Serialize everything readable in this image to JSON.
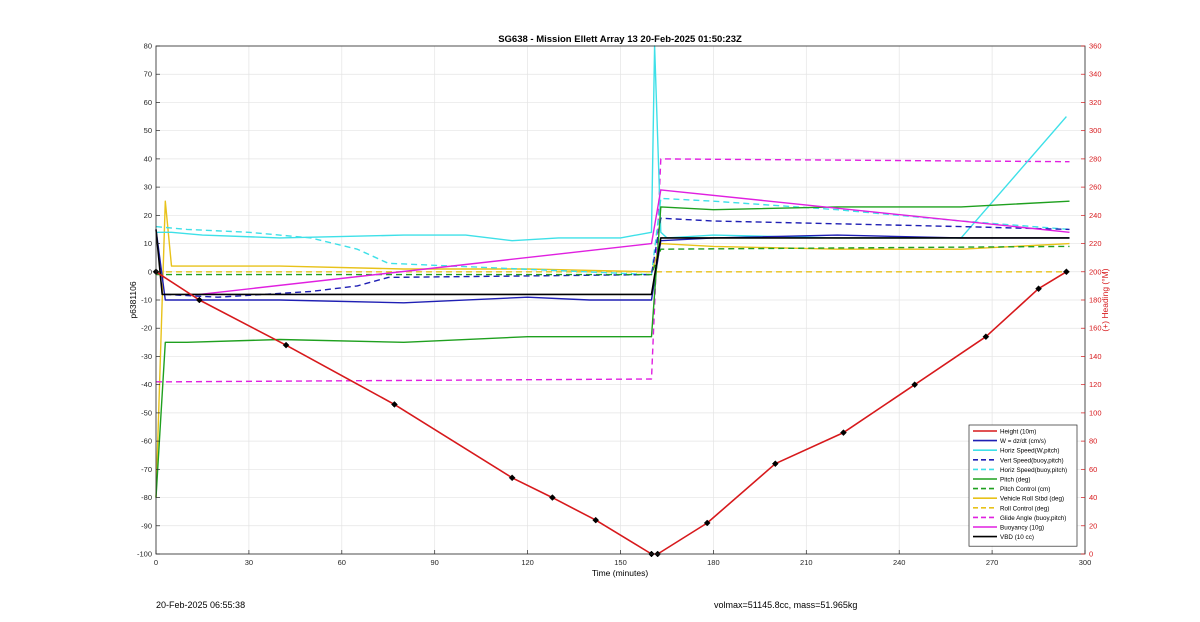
{
  "chart_data": {
    "type": "line",
    "title": "SG638 - Mission Ellett Array 13 20-Feb-2025 01:50:23Z",
    "xlabel": "Time (minutes)",
    "ylabel": "p6381106",
    "ylabel_right": "(+) Heading (°M)",
    "xlim": [
      0,
      300
    ],
    "ylim": [
      -100,
      80
    ],
    "ylim_right": [
      0,
      360
    ],
    "x_ticks": [
      "0",
      "30",
      "60",
      "90",
      "120",
      "150",
      "180",
      "210",
      "240",
      "270",
      "300"
    ],
    "y_ticks": [
      "-100",
      "-90",
      "-80",
      "-70",
      "-60",
      "-50",
      "-40",
      "-30",
      "-20",
      "-10",
      "0",
      "10",
      "20",
      "30",
      "40",
      "50",
      "60",
      "70",
      "80"
    ],
    "y_ticks_right": [
      "0",
      "20",
      "40",
      "60",
      "80",
      "100",
      "120",
      "140",
      "160",
      "180",
      "200",
      "220",
      "240",
      "260",
      "280",
      "300",
      "320",
      "340",
      "360"
    ],
    "grid": true,
    "legend_position": "lower-right",
    "legend": [
      {
        "label": "Height (10m)",
        "color": "#d7191c",
        "style": "solid"
      },
      {
        "label": "W = dz/dt (cm/s)",
        "color": "#1f1fb4",
        "style": "solid"
      },
      {
        "label": "Horiz Speed(W,pitch)",
        "color": "#3ee0e8",
        "style": "solid"
      },
      {
        "label": "Vert Speed(buoy,pitch)",
        "color": "#1f1fb4",
        "style": "dashed"
      },
      {
        "label": "Horiz Speed(buoy,pitch)",
        "color": "#3ee0e8",
        "style": "dashed"
      },
      {
        "label": "Pitch (deg)",
        "color": "#1fa01f",
        "style": "solid"
      },
      {
        "label": "Pitch Control (cm)",
        "color": "#1fa01f",
        "style": "dashed"
      },
      {
        "label": "Vehicle Roll Stbd (deg)",
        "color": "#e8c21a",
        "style": "solid"
      },
      {
        "label": "Roll Control (deg)",
        "color": "#e8c21a",
        "style": "dashed"
      },
      {
        "label": "Glide Angle (buoy,pitch)",
        "color": "#e020e0",
        "style": "dashed"
      },
      {
        "label": "Buoyancy (10g)",
        "color": "#e020e0",
        "style": "solid"
      },
      {
        "label": "VBD (10 cc)",
        "color": "#000000",
        "style": "solid"
      }
    ],
    "series": [
      {
        "name": "Height (10m)",
        "x": [
          0,
          14,
          42,
          77,
          115,
          128,
          142,
          160,
          162,
          178,
          200,
          222,
          245,
          268,
          285,
          294
        ],
        "y": [
          0,
          -10,
          -26,
          -47,
          -73,
          -80,
          -88,
          -100,
          -100,
          -89,
          -68,
          -57,
          -40,
          -23,
          -6,
          0
        ]
      },
      {
        "name": "W = dz/dt (cm/s)",
        "x": [
          0,
          3,
          15,
          40,
          80,
          120,
          140,
          160,
          163,
          180,
          220,
          260,
          295
        ],
        "y": [
          15,
          -10,
          -10,
          -10,
          -11,
          -9,
          -10,
          -10,
          11,
          12,
          13,
          12,
          12
        ]
      },
      {
        "name": "Horiz Speed(W,pitch)",
        "x": [
          0,
          5,
          15,
          40,
          80,
          100,
          115,
          130,
          150,
          160,
          161,
          163,
          165,
          180,
          220,
          260,
          294
        ],
        "y": [
          14,
          14,
          13,
          12,
          13,
          13,
          11,
          12,
          12,
          14,
          80,
          14,
          12,
          13,
          12,
          12,
          55
        ]
      },
      {
        "name": "Vert Speed(buoy,pitch)",
        "x": [
          3,
          20,
          50,
          65,
          75,
          160,
          163,
          180,
          220,
          260,
          295
        ],
        "y": [
          -8,
          -9,
          -7,
          -5,
          -2,
          -1,
          19,
          18,
          17,
          16,
          15
        ]
      },
      {
        "name": "Horiz Speed(buoy,pitch)",
        "x": [
          0,
          10,
          30,
          50,
          65,
          75,
          160,
          163,
          180,
          220,
          260,
          295
        ],
        "y": [
          16,
          15,
          14,
          12,
          8,
          3,
          -1,
          26,
          25,
          22,
          18,
          15
        ]
      },
      {
        "name": "Pitch (deg)",
        "x": [
          0,
          3,
          10,
          40,
          80,
          120,
          160,
          163,
          180,
          220,
          260,
          295
        ],
        "y": [
          -80,
          -25,
          -25,
          -24,
          -25,
          -23,
          -23,
          23,
          22,
          23,
          23,
          25
        ]
      },
      {
        "name": "Pitch Control (cm)",
        "x": [
          0,
          160,
          163,
          295
        ],
        "y": [
          -1,
          -1,
          8,
          9
        ]
      },
      {
        "name": "Vehicle Roll Stbd (deg)",
        "x": [
          0,
          3,
          5,
          15,
          40,
          80,
          120,
          160,
          163,
          180,
          220,
          260,
          295
        ],
        "y": [
          -80,
          25,
          2,
          2,
          2,
          1,
          1,
          0,
          10,
          9,
          8,
          8,
          10
        ]
      },
      {
        "name": "Roll Control (deg)",
        "x": [
          0,
          160,
          163,
          295
        ],
        "y": [
          0,
          0,
          0,
          0
        ]
      },
      {
        "name": "Glide Angle (buoy,pitch)",
        "x": [
          0,
          5,
          160,
          163,
          295
        ],
        "y": [
          -39,
          -39,
          -38,
          40,
          39
        ]
      },
      {
        "name": "Buoyancy (10g)",
        "x": [
          14,
          160,
          163,
          295
        ],
        "y": [
          -8,
          10,
          29,
          14
        ]
      },
      {
        "name": "VBD (10 cc)",
        "x": [
          0,
          2,
          160,
          163,
          295
        ],
        "y": [
          15,
          -8,
          -8,
          12,
          12
        ]
      }
    ]
  },
  "footer": {
    "timestamp": "20-Feb-2025 06:55:38",
    "stats": "volmax=51145.8cc, mass=51.965kg"
  }
}
